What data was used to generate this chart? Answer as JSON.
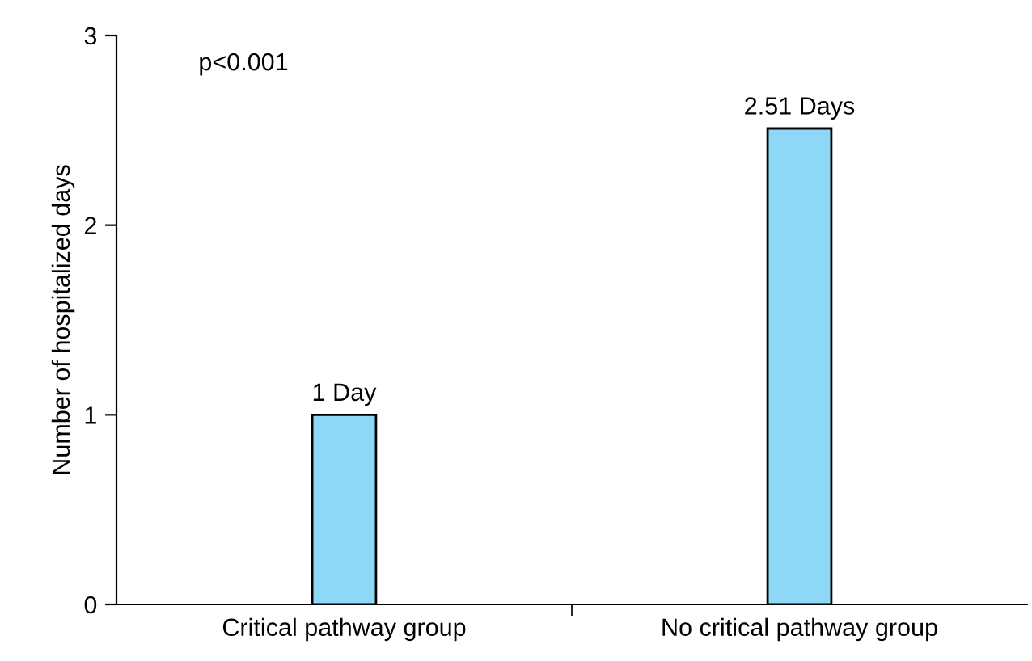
{
  "chart_data": {
    "type": "bar",
    "ylabel": "Number of hospitalized days",
    "categories": [
      "Critical pathway group",
      "No critical pathway group"
    ],
    "values": [
      1,
      2.51
    ],
    "value_labels": [
      "1 Day",
      "2.51 Days"
    ],
    "color": "#8dd7f7",
    "ylim": [
      0,
      3
    ],
    "yticks": [
      0,
      1,
      2,
      3
    ],
    "grid": false,
    "legend": false,
    "annotations": [
      "p<0.001"
    ]
  }
}
